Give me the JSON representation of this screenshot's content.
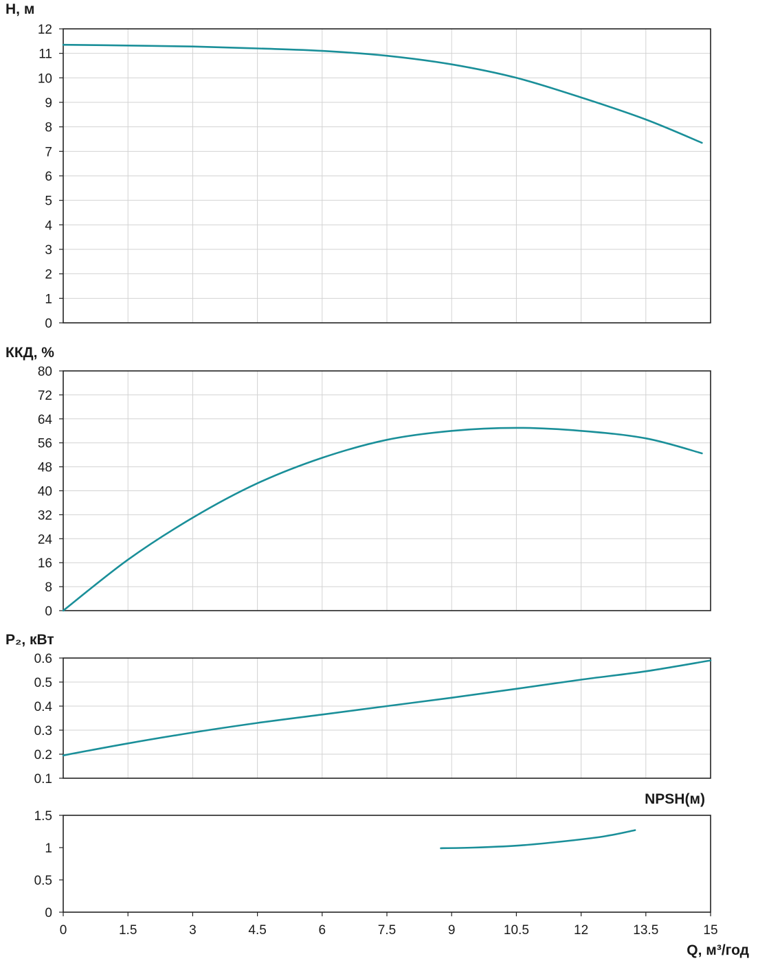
{
  "chart_data": [
    {
      "type": "line",
      "ylabel": "H, м",
      "ylim": [
        0,
        12
      ],
      "yticks": [
        "0",
        "1",
        "2",
        "3",
        "4",
        "5",
        "6",
        "7",
        "8",
        "9",
        "10",
        "11",
        "12"
      ],
      "xlim": [
        0,
        15
      ],
      "series": [
        {
          "x": [
            0,
            1.5,
            3,
            4.5,
            6,
            7.5,
            9,
            10.5,
            12,
            13.5,
            14.8
          ],
          "y": [
            11.35,
            11.32,
            11.28,
            11.2,
            11.1,
            10.9,
            10.55,
            10.0,
            9.2,
            8.3,
            7.35
          ]
        }
      ],
      "grid": true
    },
    {
      "type": "line",
      "ylabel": "ККД, %",
      "ylim": [
        0,
        80
      ],
      "yticks": [
        "0",
        "8",
        "16",
        "24",
        "32",
        "40",
        "48",
        "56",
        "64",
        "72",
        "80"
      ],
      "xlim": [
        0,
        15
      ],
      "series": [
        {
          "x": [
            0,
            1.5,
            3,
            4.5,
            6,
            7.5,
            9,
            10.5,
            12,
            13.5,
            14.8
          ],
          "y": [
            0,
            17,
            31,
            42.5,
            51,
            57,
            60,
            61,
            60,
            57.5,
            52.5
          ]
        }
      ],
      "grid": true
    },
    {
      "type": "line",
      "ylabel": "P₂, кВт",
      "ylim": [
        0.1,
        0.6
      ],
      "yticks": [
        "0.1",
        "0.2",
        "0.3",
        "0.4",
        "0.5",
        "0.6"
      ],
      "xlim": [
        0,
        15
      ],
      "series": [
        {
          "x": [
            0,
            1.5,
            3,
            4.5,
            6,
            7.5,
            9,
            10.5,
            12,
            13.5,
            15
          ],
          "y": [
            0.195,
            0.245,
            0.29,
            0.33,
            0.365,
            0.4,
            0.435,
            0.472,
            0.51,
            0.545,
            0.59
          ]
        }
      ],
      "grid": true
    },
    {
      "type": "line",
      "title": "NPSH(м)",
      "ylim": [
        0,
        1.5
      ],
      "yticks": [
        "0",
        "0.5",
        "1",
        "1.5"
      ],
      "xlim": [
        0,
        15
      ],
      "xticks": [
        "0",
        "1.5",
        "3",
        "4.5",
        "6",
        "7.5",
        "9",
        "10.5",
        "12",
        "13.5",
        "15"
      ],
      "xlabel": "Q, м³/год",
      "series": [
        {
          "x": [
            8.75,
            9.5,
            10.5,
            11.5,
            12.5,
            13.25
          ],
          "y": [
            0.99,
            1.0,
            1.03,
            1.09,
            1.17,
            1.27
          ]
        }
      ],
      "grid": false
    }
  ]
}
